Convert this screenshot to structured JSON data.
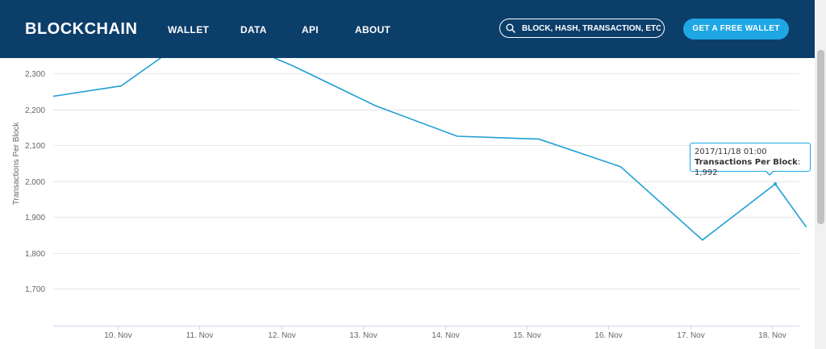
{
  "nav": {
    "logo": "BLOCKCHAIN",
    "links": [
      "WALLET",
      "DATA",
      "API",
      "ABOUT"
    ],
    "search_placeholder": "BLOCK, HASH, TRANSACTION, ETC...",
    "cta_label": "GET A FREE WALLET"
  },
  "colors": {
    "nav_bg": "#0c3e6a",
    "accent": "#1ea7e4",
    "line": "#1f9fd6"
  },
  "chart_data": {
    "type": "line",
    "title": "",
    "xlabel": "",
    "ylabel": "Transactions Per Block",
    "ylim": [
      1600,
      2350
    ],
    "yticks": [
      1700,
      1800,
      1900,
      2000,
      2100,
      2200,
      2300
    ],
    "ytick_labels": [
      "1,700",
      "1,800",
      "1,900",
      "2,000",
      "2,100",
      "2,200",
      "2,300"
    ],
    "xticks": [
      "10. Nov",
      "11. Nov",
      "12. Nov",
      "13. Nov",
      "14. Nov",
      "15. Nov",
      "16. Nov",
      "17. Nov",
      "18. Nov"
    ],
    "xlim": [
      9.18,
      18.42
    ],
    "grid": true,
    "legend": "none",
    "series": [
      {
        "x": [
          9.21,
          10.04,
          10.6,
          11.79,
          12.15,
          13.15,
          14.15,
          15.15,
          16.15,
          17.15,
          18.04,
          18.42
        ],
        "y": [
          2236,
          2265,
          2355,
          2355,
          2320,
          2210,
          2125,
          2117,
          2040,
          1836,
          1992,
          1872
        ]
      }
    ],
    "tooltip": {
      "date": "2017/11/18 01:00",
      "label": "Transactions Per Block",
      "value": "1,992",
      "x": 18.04,
      "y": 1992
    }
  }
}
